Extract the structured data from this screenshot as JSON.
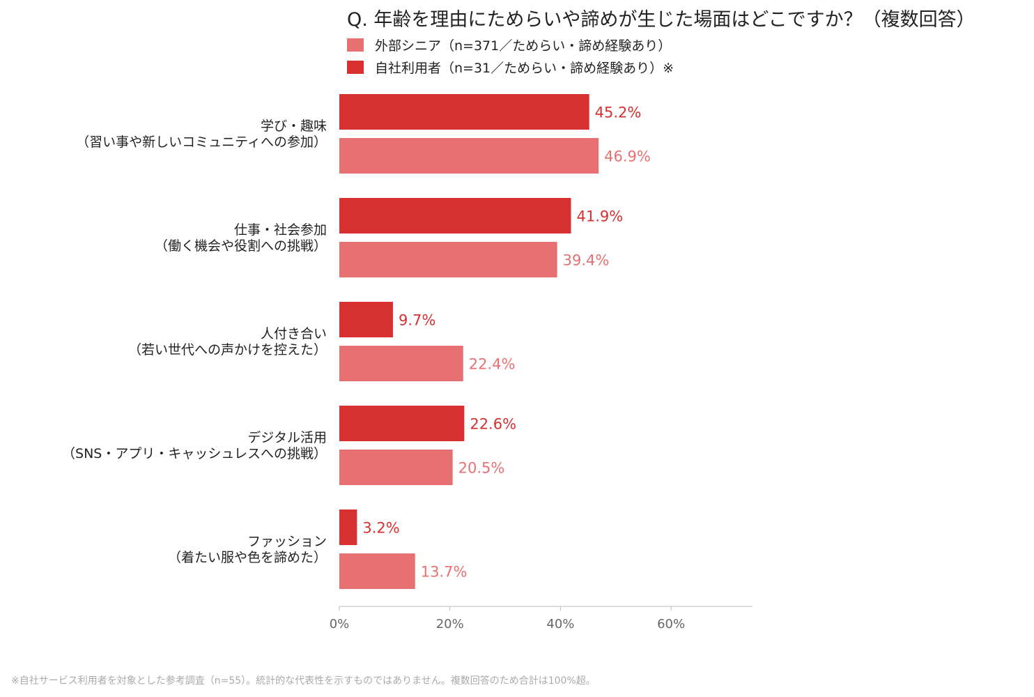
{
  "chart_data": {
    "type": "bar",
    "orientation": "horizontal",
    "title": "Q. 年齢を理由にためらいや諦めが生じた場面はどこですか？（複数回答）",
    "categories": [
      [
        "学び・趣味",
        "（習い事や新しいコミュニティへの参加）"
      ],
      [
        "仕事・社会参加",
        "（働く機会や役割への挑戦）"
      ],
      [
        "人付き合い",
        "（若い世代への声かけを控えた）"
      ],
      [
        "デジタル活用",
        "（SNS・アプリ・キャッシュレスへの挑戦）"
      ],
      [
        "ファッション",
        "（着たい服や色を諦めた）"
      ]
    ],
    "series": [
      {
        "name": "自社利用者（n=31／ためらい・諦め経験あり）※",
        "color": "#d63031",
        "values": [
          45.2,
          41.9,
          9.7,
          22.6,
          3.2
        ],
        "labels": [
          "45.2%",
          "41.9%",
          "9.7%",
          "22.6%",
          "3.2%"
        ]
      },
      {
        "name": "外部シニア（n=371／ためらい・諦め経験あり）",
        "color": "#e77172",
        "values": [
          46.9,
          39.4,
          22.4,
          20.5,
          13.7
        ],
        "labels": [
          "46.9%",
          "39.4%",
          "22.4%",
          "20.5%",
          "13.7%"
        ]
      }
    ],
    "legend_order": [
      1,
      0
    ],
    "xlim": [
      0,
      75
    ],
    "xticks": [
      0,
      20,
      40,
      60
    ],
    "xtick_labels": [
      "0%",
      "20%",
      "40%",
      "60%"
    ],
    "grid": false,
    "legend_position": "top-left"
  },
  "footnote": "※自社サービス利用者を対象とした参考調査（n=55）。統計的な代表性を示すものではありません。複数回答のため合計は100%超。"
}
